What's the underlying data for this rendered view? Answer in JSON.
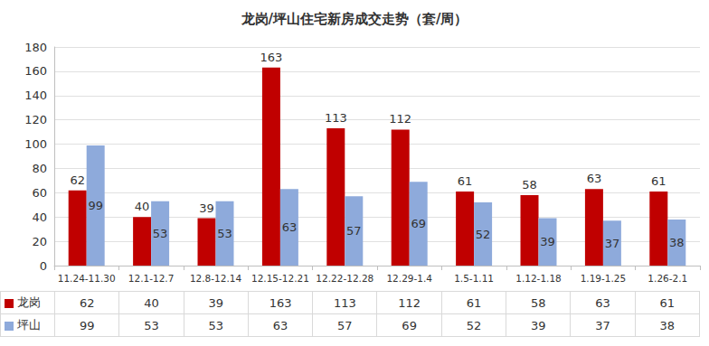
{
  "chart_data": {
    "type": "bar",
    "title": "龙岗/坪山住宅新房成交走势（套/周）",
    "categories": [
      "11.24-11.30",
      "12.1-12.7",
      "12.8-12.14",
      "12.15-12.21",
      "12.22-12.28",
      "12.29-1.4",
      "1.5-1.11",
      "1.12-1.18",
      "1.19-1.25",
      "1.26-2.1"
    ],
    "series": [
      {
        "name": "龙岗",
        "color": "#c00000",
        "values": [
          62,
          40,
          39,
          163,
          113,
          112,
          61,
          58,
          63,
          61
        ]
      },
      {
        "name": "坪山",
        "color": "#8eaadb",
        "values": [
          99,
          53,
          53,
          63,
          57,
          69,
          52,
          39,
          37,
          38
        ]
      }
    ],
    "ylim": [
      0,
      180
    ],
    "yticks": [
      0,
      20,
      40,
      60,
      80,
      100,
      120,
      140,
      160,
      180
    ],
    "grid": true,
    "data_labels": true
  }
}
